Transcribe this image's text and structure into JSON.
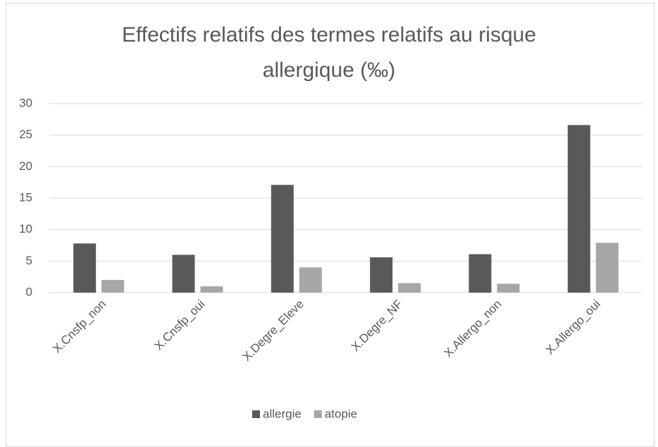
{
  "chart_data": {
    "type": "bar",
    "title": "Effectifs relatifs des termes relatifs au risque allergique (‰)",
    "categories": [
      "X.Cnsfp_non",
      "X.Cnsfp_oui",
      "X.Degre_Eleve",
      "X.Degre_NF",
      "X.Allergo_non",
      "X.Allergo_oui"
    ],
    "series": [
      {
        "name": "allergie",
        "color": "#595959",
        "values": [
          7.8,
          6.0,
          17.1,
          5.6,
          6.1,
          26.6
        ]
      },
      {
        "name": "atopie",
        "color": "#a6a6a6",
        "values": [
          2.0,
          1.0,
          4.0,
          1.5,
          1.4,
          7.9
        ]
      }
    ],
    "ylim": [
      0,
      30
    ],
    "yticks": [
      0,
      5,
      10,
      15,
      20,
      25,
      30
    ],
    "grid": true,
    "legend": "bottom"
  }
}
